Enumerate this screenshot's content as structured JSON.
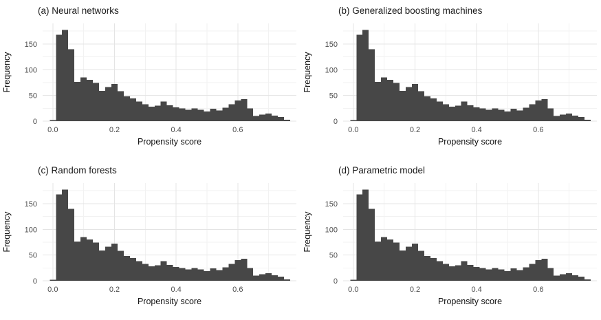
{
  "page": {
    "background": "#ffffff"
  },
  "chart_data": [
    {
      "type": "bar",
      "subtype": "histogram",
      "title": "(a) Neural networks",
      "xlabel": "Propensity score",
      "ylabel": "Frequency",
      "bar_color": "#474747",
      "grid": "on",
      "legend": "none",
      "bin_width": 0.02,
      "bin_centers": [
        0.0,
        0.02,
        0.04,
        0.06,
        0.08,
        0.1,
        0.12,
        0.14,
        0.16,
        0.18,
        0.2,
        0.22,
        0.24,
        0.26,
        0.28,
        0.3,
        0.32,
        0.34,
        0.36,
        0.38,
        0.4,
        0.42,
        0.44,
        0.46,
        0.48,
        0.5,
        0.52,
        0.54,
        0.56,
        0.58,
        0.6,
        0.62,
        0.64,
        0.66,
        0.68,
        0.7,
        0.72,
        0.74,
        0.76
      ],
      "values": [
        2,
        168,
        177,
        140,
        76,
        85,
        80,
        74,
        59,
        66,
        72,
        58,
        48,
        44,
        38,
        33,
        28,
        30,
        38,
        31,
        27,
        25,
        22,
        25,
        22,
        19,
        24,
        21,
        26,
        33,
        40,
        43,
        25,
        10,
        13,
        15,
        11,
        8,
        3
      ],
      "x_ticks": [
        0.0,
        0.2,
        0.4,
        0.6
      ],
      "x_tick_labels": [
        "0.0",
        "0.2",
        "0.4",
        "0.6"
      ],
      "x_minor_ticks": [
        0.1,
        0.3,
        0.5,
        0.7
      ],
      "y_ticks": [
        0,
        50,
        100,
        150
      ],
      "y_tick_labels": [
        "0",
        "50",
        "100",
        "150"
      ],
      "y_minor_ticks": [
        25,
        75,
        125,
        175
      ],
      "xlim": [
        -0.033,
        0.79
      ],
      "ylim": [
        0,
        190
      ]
    },
    {
      "type": "bar",
      "subtype": "histogram",
      "title": "(b) Generalized boosting machines",
      "xlabel": "Propensity score",
      "ylabel": "Frequency",
      "bar_color": "#474747",
      "grid": "on",
      "legend": "none",
      "bin_width": 0.02,
      "bin_centers": [
        0.0,
        0.02,
        0.04,
        0.06,
        0.08,
        0.1,
        0.12,
        0.14,
        0.16,
        0.18,
        0.2,
        0.22,
        0.24,
        0.26,
        0.28,
        0.3,
        0.32,
        0.34,
        0.36,
        0.38,
        0.4,
        0.42,
        0.44,
        0.46,
        0.48,
        0.5,
        0.52,
        0.54,
        0.56,
        0.58,
        0.6,
        0.62,
        0.64,
        0.66,
        0.68,
        0.7,
        0.72,
        0.74,
        0.76
      ],
      "values": [
        2,
        168,
        177,
        140,
        76,
        85,
        80,
        74,
        59,
        66,
        72,
        58,
        48,
        44,
        38,
        33,
        28,
        30,
        38,
        31,
        27,
        25,
        22,
        25,
        22,
        19,
        24,
        21,
        26,
        33,
        40,
        43,
        25,
        10,
        13,
        15,
        11,
        8,
        3
      ],
      "x_ticks": [
        0.0,
        0.2,
        0.4,
        0.6
      ],
      "x_tick_labels": [
        "0.0",
        "0.2",
        "0.4",
        "0.6"
      ],
      "x_minor_ticks": [
        0.1,
        0.3,
        0.5,
        0.7
      ],
      "y_ticks": [
        0,
        50,
        100,
        150
      ],
      "y_tick_labels": [
        "0",
        "50",
        "100",
        "150"
      ],
      "y_minor_ticks": [
        25,
        75,
        125,
        175
      ],
      "xlim": [
        -0.033,
        0.79
      ],
      "ylim": [
        0,
        190
      ]
    },
    {
      "type": "bar",
      "subtype": "histogram",
      "title": "(c) Random forests",
      "xlabel": "Propensity score",
      "ylabel": "Frequency",
      "bar_color": "#474747",
      "grid": "on",
      "legend": "none",
      "bin_width": 0.02,
      "bin_centers": [
        0.0,
        0.02,
        0.04,
        0.06,
        0.08,
        0.1,
        0.12,
        0.14,
        0.16,
        0.18,
        0.2,
        0.22,
        0.24,
        0.26,
        0.28,
        0.3,
        0.32,
        0.34,
        0.36,
        0.38,
        0.4,
        0.42,
        0.44,
        0.46,
        0.48,
        0.5,
        0.52,
        0.54,
        0.56,
        0.58,
        0.6,
        0.62,
        0.64,
        0.66,
        0.68,
        0.7,
        0.72,
        0.74,
        0.76
      ],
      "values": [
        2,
        168,
        177,
        140,
        76,
        85,
        80,
        74,
        59,
        66,
        72,
        58,
        48,
        44,
        38,
        33,
        28,
        30,
        38,
        31,
        27,
        25,
        22,
        25,
        22,
        19,
        24,
        21,
        26,
        33,
        40,
        43,
        25,
        10,
        13,
        15,
        11,
        8,
        3
      ],
      "x_ticks": [
        0.0,
        0.2,
        0.4,
        0.6
      ],
      "x_tick_labels": [
        "0.0",
        "0.2",
        "0.4",
        "0.6"
      ],
      "x_minor_ticks": [
        0.1,
        0.3,
        0.5,
        0.7
      ],
      "y_ticks": [
        0,
        50,
        100,
        150
      ],
      "y_tick_labels": [
        "0",
        "50",
        "100",
        "150"
      ],
      "y_minor_ticks": [
        25,
        75,
        125,
        175
      ],
      "xlim": [
        -0.033,
        0.79
      ],
      "ylim": [
        0,
        190
      ]
    },
    {
      "type": "bar",
      "subtype": "histogram",
      "title": "(d) Parametric model",
      "xlabel": "Propensity score",
      "ylabel": "Frequency",
      "bar_color": "#474747",
      "grid": "on",
      "legend": "none",
      "bin_width": 0.02,
      "bin_centers": [
        0.0,
        0.02,
        0.04,
        0.06,
        0.08,
        0.1,
        0.12,
        0.14,
        0.16,
        0.18,
        0.2,
        0.22,
        0.24,
        0.26,
        0.28,
        0.3,
        0.32,
        0.34,
        0.36,
        0.38,
        0.4,
        0.42,
        0.44,
        0.46,
        0.48,
        0.5,
        0.52,
        0.54,
        0.56,
        0.58,
        0.6,
        0.62,
        0.64,
        0.66,
        0.68,
        0.7,
        0.72,
        0.74,
        0.76
      ],
      "values": [
        2,
        168,
        177,
        140,
        76,
        85,
        80,
        74,
        59,
        66,
        72,
        58,
        48,
        44,
        38,
        33,
        28,
        30,
        38,
        31,
        27,
        25,
        22,
        25,
        22,
        19,
        24,
        21,
        26,
        33,
        40,
        43,
        25,
        10,
        13,
        15,
        11,
        8,
        3
      ],
      "x_ticks": [
        0.0,
        0.2,
        0.4,
        0.6
      ],
      "x_tick_labels": [
        "0.0",
        "0.2",
        "0.4",
        "0.6"
      ],
      "x_minor_ticks": [
        0.1,
        0.3,
        0.5,
        0.7
      ],
      "y_ticks": [
        0,
        50,
        100,
        150
      ],
      "y_tick_labels": [
        "0",
        "50",
        "100",
        "150"
      ],
      "y_minor_ticks": [
        25,
        75,
        125,
        175
      ],
      "xlim": [
        -0.033,
        0.79
      ],
      "ylim": [
        0,
        190
      ]
    }
  ],
  "style": {
    "grid_major_color": "#e4e4e4",
    "grid_minor_color": "#f2f2f2",
    "tick_label_color": "#4d4d4d",
    "title_color": "#1a1a1a"
  }
}
